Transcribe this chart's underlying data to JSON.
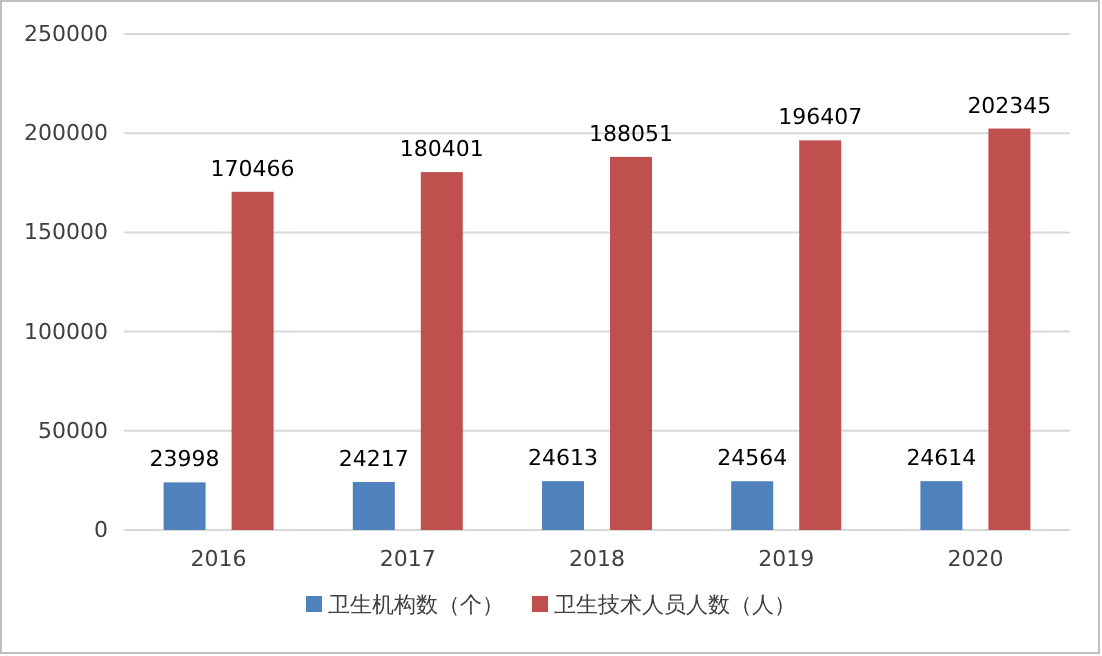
{
  "chart_data": {
    "type": "bar",
    "categories": [
      "2016",
      "2017",
      "2018",
      "2019",
      "2020"
    ],
    "series": [
      {
        "name": "卫生机构数（个）",
        "color": "#4f81bd",
        "values": [
          23998,
          24217,
          24613,
          24564,
          24614
        ]
      },
      {
        "name": "卫生技术人员人数（人）",
        "color": "#c0504d",
        "values": [
          170466,
          180401,
          188051,
          196407,
          202345
        ]
      }
    ],
    "ylim": [
      0,
      250000
    ],
    "yticks": [
      0,
      50000,
      100000,
      150000,
      200000,
      250000
    ],
    "grid": "y",
    "legend": "bottom",
    "data_labels": true
  }
}
